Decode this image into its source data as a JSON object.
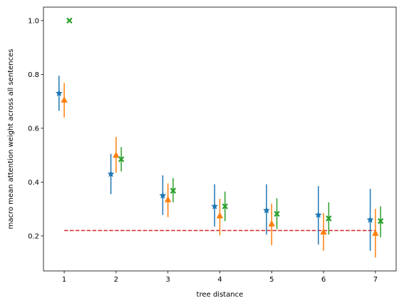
{
  "chart_data": {
    "type": "scatter",
    "title": "",
    "xlabel": "tree distance",
    "ylabel": "macro mean attention weight across all sentences",
    "x": [
      1,
      2,
      3,
      4,
      5,
      6,
      7
    ],
    "xlim": [
      0.6,
      7.4
    ],
    "ylim": [
      0.07,
      1.05
    ],
    "xticks": [
      "1",
      "2",
      "3",
      "4",
      "5",
      "6",
      "7"
    ],
    "yticks": [
      "0.2",
      "0.4",
      "0.6",
      "0.8",
      "1.0"
    ],
    "ytick_values": [
      0.2,
      0.4,
      0.6,
      0.8,
      1.0
    ],
    "grid": false,
    "series": [
      {
        "marker": "star",
        "color": "#1f77b4",
        "x_offset": -0.1,
        "values": [
          0.73,
          0.43,
          0.35,
          0.31,
          0.295,
          0.278,
          0.26
        ],
        "err_low": [
          0.665,
          0.355,
          0.278,
          0.235,
          0.205,
          0.168,
          0.145
        ],
        "err_high": [
          0.795,
          0.505,
          0.425,
          0.392,
          0.392,
          0.385,
          0.375
        ]
      },
      {
        "marker": "triangle",
        "color": "#ff7f0e",
        "x_offset": 0,
        "values": [
          0.705,
          0.5,
          0.335,
          0.275,
          0.245,
          0.215,
          0.21
        ],
        "err_low": [
          0.64,
          0.435,
          0.27,
          0.202,
          0.165,
          0.145,
          0.12
        ],
        "err_high": [
          0.768,
          0.568,
          0.395,
          0.338,
          0.32,
          0.285,
          0.3
        ]
      },
      {
        "marker": "x",
        "color": "#2ca02c",
        "x_offset": 0.1,
        "values": [
          1.0,
          0.485,
          0.368,
          0.31,
          0.282,
          0.265,
          0.255
        ],
        "err_low": [
          1.0,
          0.44,
          0.325,
          0.255,
          0.225,
          0.205,
          0.195
        ],
        "err_high": [
          1.0,
          0.53,
          0.415,
          0.365,
          0.34,
          0.325,
          0.31
        ]
      }
    ],
    "reference_line": {
      "y": 0.22,
      "x_range": [
        1,
        7
      ],
      "color": "#d62728",
      "style": "dashed"
    }
  }
}
